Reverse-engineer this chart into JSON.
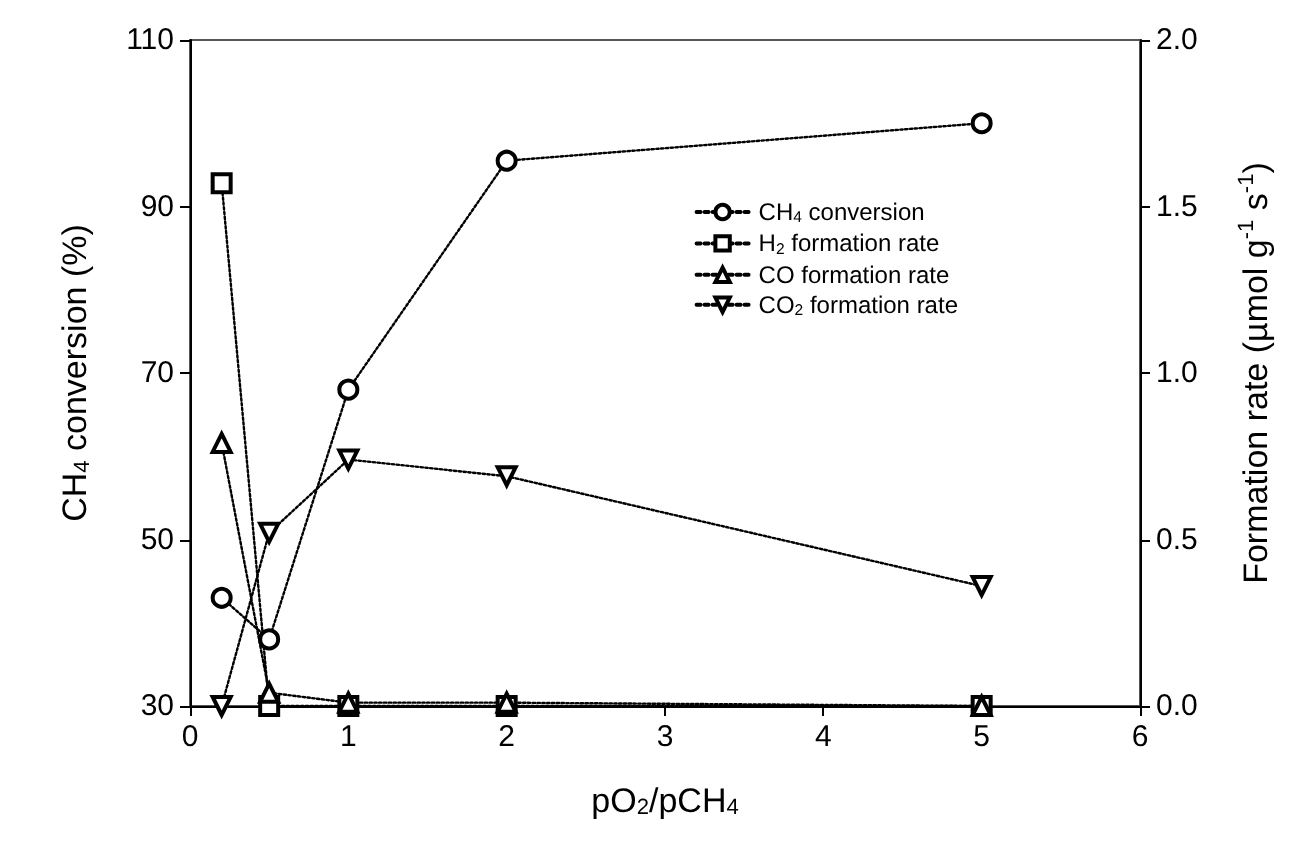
{
  "chart_data": {
    "type": "line",
    "xlabel": "pO$_{2}$/pCH$_{4}$",
    "ylabel": "CH$_{4}$ conversion (%)",
    "y2label": "Formation rate (µmol g$^{-1}$ s$^{-1}$)",
    "x": [
      0.2,
      0.5,
      1,
      2,
      5
    ],
    "xlim": [
      0,
      6
    ],
    "xticks": [
      0,
      1,
      2,
      3,
      4,
      5,
      6
    ],
    "ylim": [
      30,
      110
    ],
    "yticks": [
      30,
      50,
      70,
      90,
      110
    ],
    "y2lim": [
      0,
      2
    ],
    "y2ticks": [
      {
        "value": 0,
        "label": "0.0"
      },
      0.5,
      {
        "value": 1,
        "label": "1.0"
      },
      1.5,
      {
        "value": 2,
        "label": "2.0"
      }
    ],
    "grid": false,
    "legend": "right",
    "line_style": "dotted",
    "series": [
      {
        "name": "CH$_{4}$ conversion",
        "color": "#000000",
        "marker": "circle",
        "values": [
          43,
          38,
          68,
          95.5,
          100
        ]
      },
      {
        "name": "H$_{2}$ formation rate",
        "color": "#000000",
        "marker": "square",
        "axis": "y2",
        "values": [
          1.57,
          0,
          0,
          0,
          0
        ]
      },
      {
        "name": "CO formation rate",
        "color": "#000000",
        "marker": "triangle",
        "axis": "y2",
        "values": [
          0.79,
          0.04,
          0.01,
          0.01,
          0
        ]
      },
      {
        "name": "CO$_{2}$ formation rate",
        "color": "#000000",
        "marker": "triangle-down",
        "axis": "y2",
        "values": [
          0,
          0.52,
          0.74,
          0.69,
          0.36
        ]
      }
    ]
  }
}
